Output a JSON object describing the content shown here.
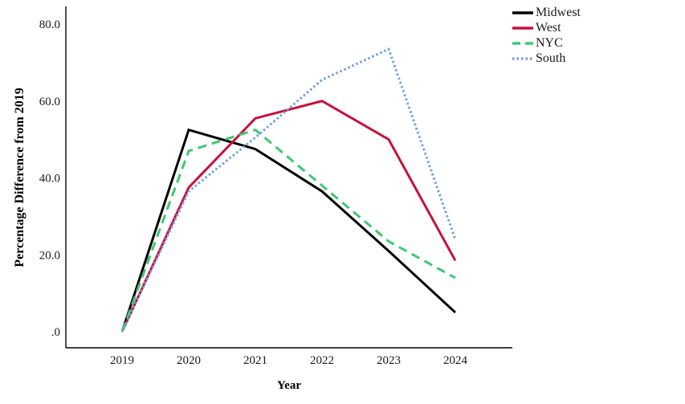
{
  "chart_data": {
    "type": "line",
    "title": "",
    "xlabel": "Year",
    "ylabel": "Percentage Difference from 2019",
    "x": [
      2019,
      2020,
      2021,
      2022,
      2023,
      2024
    ],
    "x_tick_labels": [
      "2019",
      "2020",
      "2021",
      "2022",
      "2023",
      "2024"
    ],
    "y_ticks": [
      {
        "value": 80,
        "label": "80.0"
      },
      {
        "value": 60,
        "label": "60.0"
      },
      {
        "value": 40,
        "label": "40.0"
      },
      {
        "value": 20,
        "label": "20.0"
      },
      {
        "value": 0,
        "label": ".0"
      }
    ],
    "ylim": [
      0,
      84
    ],
    "grid": false,
    "legend_position": "top-right",
    "series": [
      {
        "name": "Midwest",
        "color": "#000000",
        "style": "solid",
        "values": [
          0,
          52.5,
          47.5,
          36.5,
          21,
          5
        ]
      },
      {
        "name": "West",
        "color": "#C8103C",
        "style": "solid",
        "values": [
          0,
          37.5,
          55.5,
          60,
          50,
          18.5
        ]
      },
      {
        "name": "NYC",
        "color": "#3EC873",
        "style": "dashed",
        "values": [
          0,
          47,
          52.5,
          38,
          23.5,
          14
        ]
      },
      {
        "name": "South",
        "color": "#73A0DC",
        "style": "dotted",
        "values": [
          0,
          36.5,
          50.5,
          65.5,
          73.5,
          24
        ]
      }
    ]
  }
}
